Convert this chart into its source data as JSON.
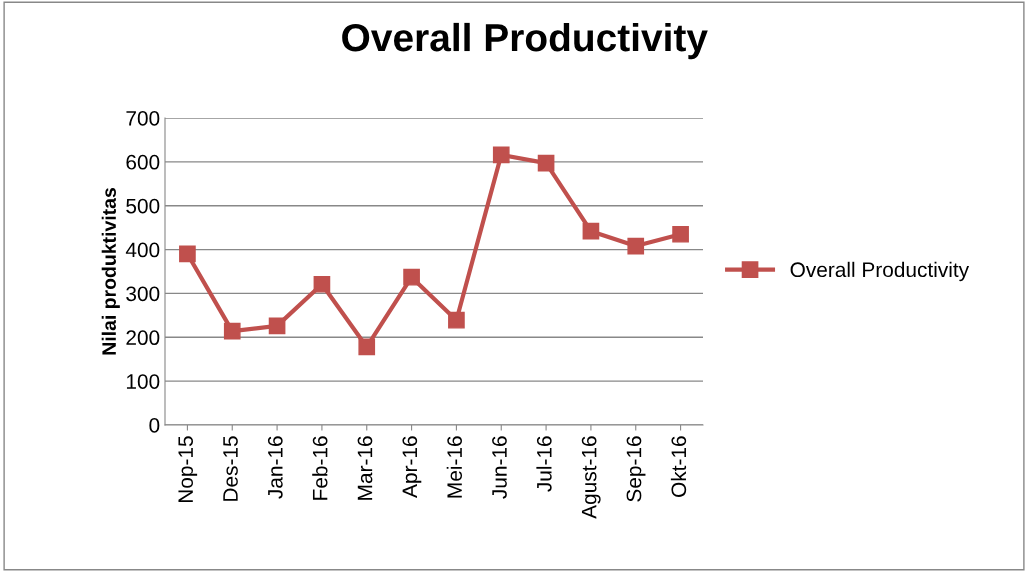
{
  "chart_data": {
    "type": "line",
    "title": "Overall Productivity",
    "ylabel": "Nilai produktivitas",
    "categories": [
      "Nop-15",
      "Des-15",
      "Jan-16",
      "Feb-16",
      "Mar-16",
      "Apr-16",
      "Mei-16",
      "Jun-16",
      "Jul-16",
      "Agust-16",
      "Sep-16",
      "Okt-16"
    ],
    "series": [
      {
        "name": "Overall Productivity",
        "color": "#c0504d",
        "values": [
          390,
          214,
          226,
          321,
          178,
          337,
          239,
          616,
          597,
          442,
          408,
          435
        ]
      }
    ],
    "ylim": [
      0,
      700
    ],
    "yticks": [
      0,
      100,
      200,
      300,
      400,
      500,
      600,
      700
    ],
    "grid": "y",
    "legend": "right",
    "marker": "square",
    "line_style": "solid"
  }
}
